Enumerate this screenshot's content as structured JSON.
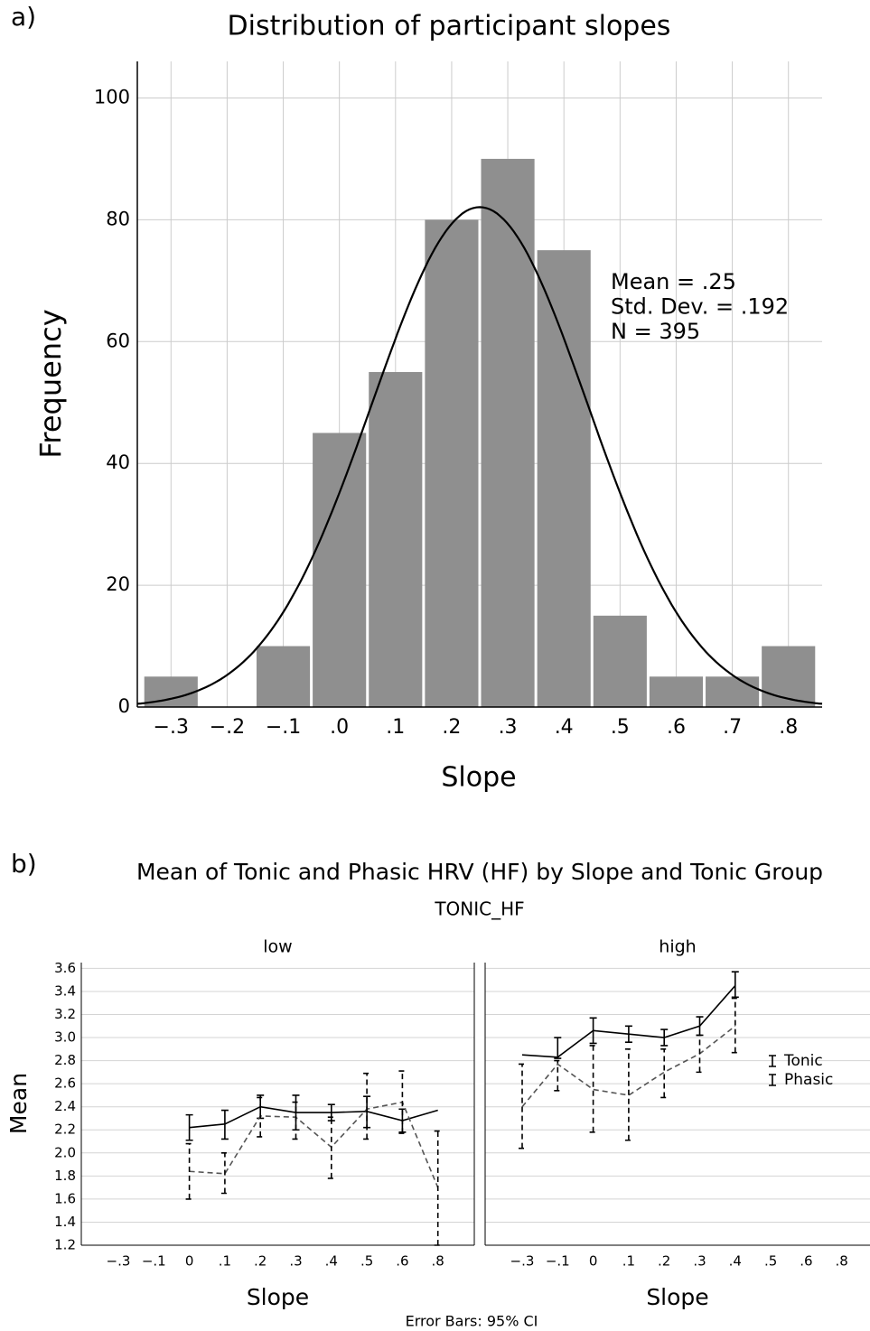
{
  "chart_data": [
    {
      "type": "histogram",
      "panel_label": "a)",
      "title": "Distribution of participant slopes",
      "x_label": "Slope",
      "y_label": "Frequency",
      "bins": [
        -0.35,
        -0.25,
        -0.15,
        -0.05,
        0.05,
        0.15,
        0.25,
        0.35,
        0.45,
        0.55,
        0.65,
        0.75,
        0.85
      ],
      "values": [
        5,
        0,
        10,
        45,
        55,
        80,
        90,
        75,
        15,
        5,
        5,
        10
      ],
      "color": "#8f8f8f",
      "grid": true,
      "xlim": [
        -0.36,
        0.86
      ],
      "xticks": [
        {
          "value": -0.3,
          "label": "−.3"
        },
        {
          "value": -0.2,
          "label": "−.2"
        },
        {
          "value": -0.1,
          "label": "−.1"
        },
        {
          "value": 0,
          "label": ".0"
        },
        {
          "value": 0.1,
          "label": ".1"
        },
        {
          "value": 0.2,
          "label": ".2"
        },
        {
          "value": 0.3,
          "label": ".3"
        },
        {
          "value": 0.4,
          "label": ".4"
        },
        {
          "value": 0.5,
          "label": ".5"
        },
        {
          "value": 0.6,
          "label": ".6"
        },
        {
          "value": 0.7,
          "label": ".7"
        },
        {
          "value": 0.8,
          "label": ".8"
        }
      ],
      "ylim": [
        0,
        106
      ],
      "yticks": [
        0,
        20,
        40,
        60,
        80,
        100
      ],
      "annotations": [
        "Mean = .25",
        "Std. Dev. = .192",
        "N = 395"
      ],
      "normal_curve": {
        "mean": 0.25,
        "sd": 0.192,
        "n": 395
      }
    },
    {
      "type": "line",
      "panel_label": "b)",
      "title": "Mean of Tonic and Phasic HRV (HF) by Slope and Tonic Group",
      "subtitle": "TONIC_HF",
      "x_label": "Slope",
      "y_label": "Mean",
      "footer": "Error Bars: 95% CI",
      "categories": [
        "−.3",
        "−.1",
        "0",
        ".1",
        ".2",
        ".3",
        ".4",
        ".5",
        ".6",
        ".8"
      ],
      "ylim": [
        1.2,
        3.65
      ],
      "yticks": [
        1.2,
        1.4,
        1.6,
        1.8,
        {
          "value": 2,
          "label": "2.0"
        },
        2.2,
        2.4,
        2.6,
        2.8,
        {
          "value": 3,
          "label": "3.0"
        },
        3.2,
        3.4,
        3.6
      ],
      "grid": true,
      "series": [
        {
          "name": "Tonic",
          "color": "#000000",
          "dashed": false
        },
        {
          "name": "Phasic",
          "color": "#555555",
          "dashed": true
        }
      ],
      "panels": [
        {
          "label": "low",
          "series": [
            {
              "values": [
                null,
                null,
                2.22,
                2.25,
                2.4,
                2.35,
                2.35,
                2.36,
                2.28,
                2.37
              ],
              "lower": [
                null,
                null,
                2.11,
                2.12,
                2.3,
                2.2,
                2.28,
                2.22,
                2.18,
                null
              ],
              "upper": [
                null,
                null,
                2.33,
                2.37,
                2.5,
                2.5,
                2.42,
                2.49,
                2.38,
                null
              ]
            },
            {
              "values": [
                null,
                null,
                1.84,
                1.82,
                2.32,
                2.31,
                2.05,
                2.38,
                2.44,
                1.7
              ],
              "lower": [
                null,
                null,
                1.6,
                1.65,
                2.14,
                2.12,
                1.78,
                2.12,
                2.17,
                1.2
              ],
              "upper": [
                null,
                null,
                2.08,
                2.0,
                2.48,
                2.44,
                2.31,
                2.69,
                2.71,
                2.19
              ]
            }
          ]
        },
        {
          "label": "high",
          "series": [
            {
              "values": [
                2.85,
                2.83,
                3.06,
                3.03,
                3.0,
                3.1,
                3.45,
                null,
                null,
                null
              ],
              "lower": [
                null,
                2.82,
                2.95,
                2.96,
                2.93,
                3.02,
                3.35,
                null,
                null,
                null
              ],
              "upper": [
                null,
                3.0,
                3.17,
                3.1,
                3.07,
                3.18,
                3.57,
                null,
                null,
                null
              ]
            },
            {
              "values": [
                2.4,
                2.77,
                2.55,
                2.5,
                2.7,
                2.86,
                3.1,
                null,
                null,
                null
              ],
              "lower": [
                2.04,
                2.54,
                2.18,
                2.11,
                2.48,
                2.7,
                2.87,
                null,
                null,
                null
              ],
              "upper": [
                2.77,
                2.8,
                2.93,
                2.9,
                2.9,
                3.02,
                3.34,
                null,
                null,
                null
              ]
            }
          ]
        }
      ]
    }
  ]
}
